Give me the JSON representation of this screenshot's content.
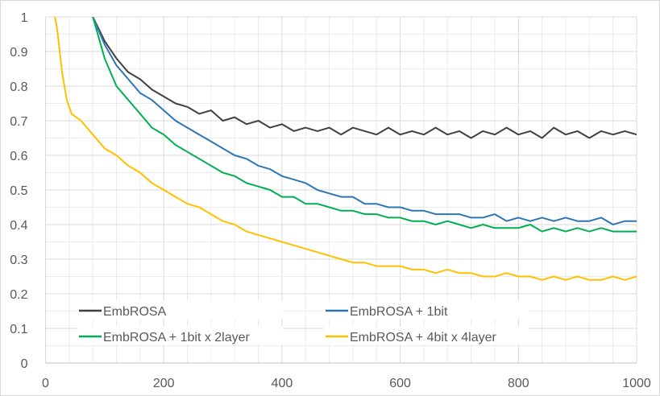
{
  "chart_data": {
    "type": "line",
    "title": "",
    "xlabel": "",
    "ylabel": "",
    "xlim": [
      0,
      1000
    ],
    "ylim": [
      0,
      1
    ],
    "x_ticks": [
      "0",
      "200",
      "400",
      "600",
      "800",
      "1000"
    ],
    "y_ticks": [
      "0",
      "0.1",
      "0.2",
      "0.3",
      "0.4",
      "0.5",
      "0.6",
      "0.7",
      "0.8",
      "0.9",
      "1"
    ],
    "grid": true,
    "legend_position": "bottom-inside",
    "series": [
      {
        "name": "EmbROSA",
        "color": "#404040",
        "points": [
          [
            80,
            1.0
          ],
          [
            100,
            0.93
          ],
          [
            120,
            0.88
          ],
          [
            140,
            0.84
          ],
          [
            160,
            0.82
          ],
          [
            180,
            0.79
          ],
          [
            200,
            0.77
          ],
          [
            220,
            0.75
          ],
          [
            240,
            0.74
          ],
          [
            260,
            0.72
          ],
          [
            280,
            0.73
          ],
          [
            300,
            0.7
          ],
          [
            320,
            0.71
          ],
          [
            340,
            0.69
          ],
          [
            360,
            0.7
          ],
          [
            380,
            0.68
          ],
          [
            400,
            0.69
          ],
          [
            420,
            0.67
          ],
          [
            440,
            0.68
          ],
          [
            460,
            0.67
          ],
          [
            480,
            0.68
          ],
          [
            500,
            0.66
          ],
          [
            520,
            0.68
          ],
          [
            540,
            0.67
          ],
          [
            560,
            0.66
          ],
          [
            580,
            0.68
          ],
          [
            600,
            0.66
          ],
          [
            620,
            0.67
          ],
          [
            640,
            0.66
          ],
          [
            660,
            0.68
          ],
          [
            680,
            0.66
          ],
          [
            700,
            0.67
          ],
          [
            720,
            0.65
          ],
          [
            740,
            0.67
          ],
          [
            760,
            0.66
          ],
          [
            780,
            0.68
          ],
          [
            800,
            0.66
          ],
          [
            820,
            0.67
          ],
          [
            840,
            0.65
          ],
          [
            860,
            0.68
          ],
          [
            880,
            0.66
          ],
          [
            900,
            0.67
          ],
          [
            920,
            0.65
          ],
          [
            940,
            0.67
          ],
          [
            960,
            0.66
          ],
          [
            980,
            0.67
          ],
          [
            1000,
            0.66
          ]
        ]
      },
      {
        "name": "EmbROSA + 1bit",
        "color": "#2e75b6",
        "points": [
          [
            80,
            1.0
          ],
          [
            100,
            0.92
          ],
          [
            120,
            0.86
          ],
          [
            140,
            0.82
          ],
          [
            160,
            0.78
          ],
          [
            180,
            0.76
          ],
          [
            200,
            0.73
          ],
          [
            220,
            0.7
          ],
          [
            240,
            0.68
          ],
          [
            260,
            0.66
          ],
          [
            280,
            0.64
          ],
          [
            300,
            0.62
          ],
          [
            320,
            0.6
          ],
          [
            340,
            0.59
          ],
          [
            360,
            0.57
          ],
          [
            380,
            0.56
          ],
          [
            400,
            0.54
          ],
          [
            420,
            0.53
          ],
          [
            440,
            0.52
          ],
          [
            460,
            0.5
          ],
          [
            480,
            0.49
          ],
          [
            500,
            0.48
          ],
          [
            520,
            0.48
          ],
          [
            540,
            0.46
          ],
          [
            560,
            0.46
          ],
          [
            580,
            0.45
          ],
          [
            600,
            0.45
          ],
          [
            620,
            0.44
          ],
          [
            640,
            0.44
          ],
          [
            660,
            0.43
          ],
          [
            680,
            0.43
          ],
          [
            700,
            0.43
          ],
          [
            720,
            0.42
          ],
          [
            740,
            0.42
          ],
          [
            760,
            0.43
          ],
          [
            780,
            0.41
          ],
          [
            800,
            0.42
          ],
          [
            820,
            0.41
          ],
          [
            840,
            0.42
          ],
          [
            860,
            0.41
          ],
          [
            880,
            0.42
          ],
          [
            900,
            0.41
          ],
          [
            920,
            0.41
          ],
          [
            940,
            0.42
          ],
          [
            960,
            0.4
          ],
          [
            980,
            0.41
          ],
          [
            1000,
            0.41
          ]
        ]
      },
      {
        "name": "EmbROSA + 1bit x 2layer",
        "color": "#00b050",
        "points": [
          [
            80,
            1.0
          ],
          [
            100,
            0.88
          ],
          [
            120,
            0.8
          ],
          [
            140,
            0.76
          ],
          [
            160,
            0.72
          ],
          [
            180,
            0.68
          ],
          [
            200,
            0.66
          ],
          [
            220,
            0.63
          ],
          [
            240,
            0.61
          ],
          [
            260,
            0.59
          ],
          [
            280,
            0.57
          ],
          [
            300,
            0.55
          ],
          [
            320,
            0.54
          ],
          [
            340,
            0.52
          ],
          [
            360,
            0.51
          ],
          [
            380,
            0.5
          ],
          [
            400,
            0.48
          ],
          [
            420,
            0.48
          ],
          [
            440,
            0.46
          ],
          [
            460,
            0.46
          ],
          [
            480,
            0.45
          ],
          [
            500,
            0.44
          ],
          [
            520,
            0.44
          ],
          [
            540,
            0.43
          ],
          [
            560,
            0.43
          ],
          [
            580,
            0.42
          ],
          [
            600,
            0.42
          ],
          [
            620,
            0.41
          ],
          [
            640,
            0.41
          ],
          [
            660,
            0.4
          ],
          [
            680,
            0.41
          ],
          [
            700,
            0.4
          ],
          [
            720,
            0.39
          ],
          [
            740,
            0.4
          ],
          [
            760,
            0.39
          ],
          [
            780,
            0.39
          ],
          [
            800,
            0.39
          ],
          [
            820,
            0.4
          ],
          [
            840,
            0.38
          ],
          [
            860,
            0.39
          ],
          [
            880,
            0.38
          ],
          [
            900,
            0.39
          ],
          [
            920,
            0.38
          ],
          [
            940,
            0.39
          ],
          [
            960,
            0.38
          ],
          [
            980,
            0.38
          ],
          [
            1000,
            0.38
          ]
        ]
      },
      {
        "name": "EmbROSA + 4bit x 4layer",
        "color": "#ffc000",
        "points": [
          [
            16,
            1.0
          ],
          [
            20,
            0.96
          ],
          [
            28,
            0.84
          ],
          [
            36,
            0.76
          ],
          [
            44,
            0.72
          ],
          [
            60,
            0.7
          ],
          [
            80,
            0.66
          ],
          [
            100,
            0.62
          ],
          [
            120,
            0.6
          ],
          [
            140,
            0.57
          ],
          [
            160,
            0.55
          ],
          [
            180,
            0.52
          ],
          [
            200,
            0.5
          ],
          [
            220,
            0.48
          ],
          [
            240,
            0.46
          ],
          [
            260,
            0.45
          ],
          [
            280,
            0.43
          ],
          [
            300,
            0.41
          ],
          [
            320,
            0.4
          ],
          [
            340,
            0.38
          ],
          [
            360,
            0.37
          ],
          [
            380,
            0.36
          ],
          [
            400,
            0.35
          ],
          [
            420,
            0.34
          ],
          [
            440,
            0.33
          ],
          [
            460,
            0.32
          ],
          [
            480,
            0.31
          ],
          [
            500,
            0.3
          ],
          [
            520,
            0.29
          ],
          [
            540,
            0.29
          ],
          [
            560,
            0.28
          ],
          [
            580,
            0.28
          ],
          [
            600,
            0.28
          ],
          [
            620,
            0.27
          ],
          [
            640,
            0.27
          ],
          [
            660,
            0.26
          ],
          [
            680,
            0.27
          ],
          [
            700,
            0.26
          ],
          [
            720,
            0.26
          ],
          [
            740,
            0.25
          ],
          [
            760,
            0.25
          ],
          [
            780,
            0.26
          ],
          [
            800,
            0.25
          ],
          [
            820,
            0.25
          ],
          [
            840,
            0.24
          ],
          [
            860,
            0.25
          ],
          [
            880,
            0.24
          ],
          [
            900,
            0.25
          ],
          [
            920,
            0.24
          ],
          [
            940,
            0.24
          ],
          [
            960,
            0.25
          ],
          [
            980,
            0.24
          ],
          [
            1000,
            0.25
          ]
        ]
      }
    ]
  }
}
